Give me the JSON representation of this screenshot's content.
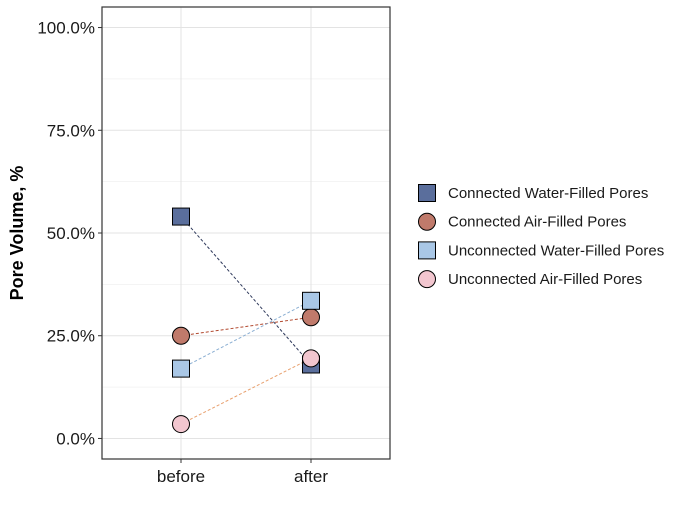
{
  "chart_data": {
    "type": "scatter",
    "categories": [
      "before",
      "after"
    ],
    "ylabel": "Pore Volume, %",
    "xlabel": "",
    "ylim": [
      -0.05,
      1.05
    ],
    "yticks": [
      0,
      0.25,
      0.5,
      0.75,
      1.0
    ],
    "ytick_labels": [
      "0.0%",
      "25.0%",
      "50.0%",
      "75.0%",
      "100.0%"
    ],
    "grid": true,
    "legend_position": "right",
    "series": [
      {
        "name": "Connected Water-Filled Pores",
        "shape": "square",
        "fill": "#5a6e9c",
        "line_color": "#2f3a5c",
        "values": [
          0.54,
          0.18
        ]
      },
      {
        "name": "Connected Air-Filled Pores",
        "shape": "circle",
        "fill": "#c07a6b",
        "line_color": "#b24a30",
        "values": [
          0.25,
          0.295
        ]
      },
      {
        "name": "Unconnected Water-Filled Pores",
        "shape": "square",
        "fill": "#a9c7e6",
        "line_color": "#8aaed2",
        "values": [
          0.17,
          0.335
        ]
      },
      {
        "name": "Unconnected Air-Filled Pores",
        "shape": "circle",
        "fill": "#f2c6cf",
        "line_color": "#e8a06e",
        "values": [
          0.035,
          0.195
        ]
      }
    ]
  }
}
